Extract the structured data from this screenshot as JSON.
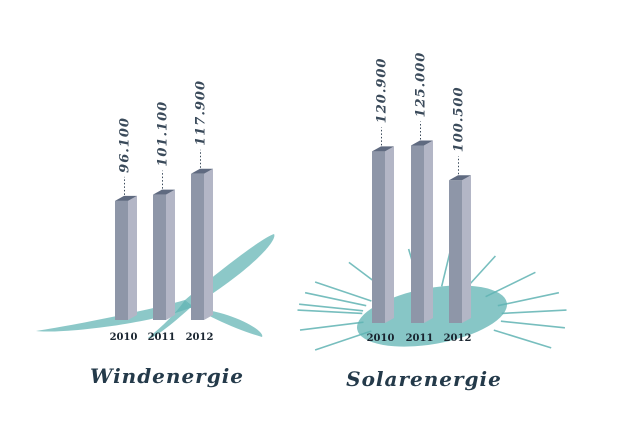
{
  "colors": {
    "bar_front": "#8e96a8",
    "bar_side": "#b3b6c6",
    "bar_top": "#5f6a80",
    "accent": "#5fb3b3"
  },
  "chart_data": [
    {
      "type": "bar",
      "title": "Windenergie",
      "categories": [
        "2010",
        "2011",
        "2012"
      ],
      "values": [
        96100,
        101100,
        117900
      ],
      "value_labels": [
        "96.100",
        "101.100",
        "117.900"
      ]
    },
    {
      "type": "bar",
      "title": "Solarenergie",
      "categories": [
        "2010",
        "2011",
        "2012"
      ],
      "values": [
        120900,
        125000,
        100500
      ],
      "value_labels": [
        "120.900",
        "125.000",
        "100.500"
      ]
    }
  ]
}
